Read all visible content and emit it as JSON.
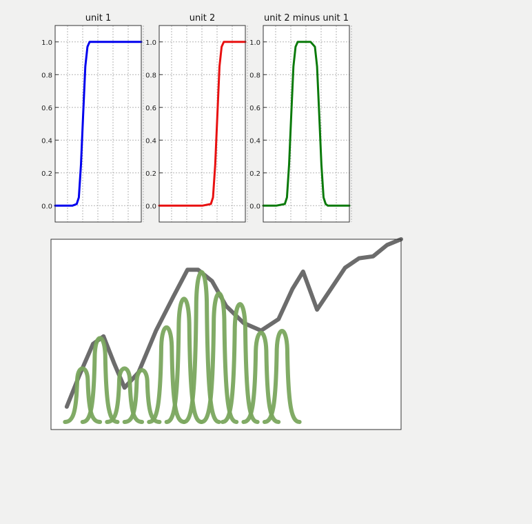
{
  "chart_data": [
    {
      "type": "line",
      "title": "unit 1",
      "xlabel": "",
      "ylabel": "",
      "xlim": [
        -1,
        1
      ],
      "ylim": [
        -0.1,
        1.1
      ],
      "yticks": [
        "0.0",
        "0.2",
        "0.4",
        "0.6",
        "0.8",
        "1.0"
      ],
      "grid": true,
      "series": [
        {
          "color": "#0000ee",
          "x": [
            -1.0,
            -0.8,
            -0.6,
            -0.5,
            -0.45,
            -0.4,
            -0.35,
            -0.3,
            -0.25,
            -0.2,
            -0.1,
            0.0,
            0.5,
            1.0
          ],
          "y": [
            0.0,
            0.0,
            0.0,
            0.01,
            0.05,
            0.25,
            0.55,
            0.85,
            0.97,
            1.0,
            1.0,
            1.0,
            1.0,
            1.0
          ]
        }
      ]
    },
    {
      "type": "line",
      "title": "unit 2",
      "xlabel": "",
      "ylabel": "",
      "xlim": [
        -1,
        1
      ],
      "ylim": [
        -0.1,
        1.1
      ],
      "yticks": [
        "0.0",
        "0.2",
        "0.4",
        "0.6",
        "0.8",
        "1.0"
      ],
      "grid": true,
      "series": [
        {
          "color": "#e81010",
          "x": [
            -1.0,
            -0.5,
            0.0,
            0.2,
            0.25,
            0.3,
            0.35,
            0.4,
            0.45,
            0.5,
            0.6,
            0.8,
            1.0
          ],
          "y": [
            0.0,
            0.0,
            0.0,
            0.01,
            0.05,
            0.25,
            0.55,
            0.85,
            0.97,
            1.0,
            1.0,
            1.0,
            1.0
          ]
        }
      ]
    },
    {
      "type": "line",
      "title": "unit 2 minus unit 1",
      "xlabel": "",
      "ylabel": "",
      "xlim": [
        -1,
        1
      ],
      "ylim": [
        -0.1,
        1.1
      ],
      "yticks": [
        "0.0",
        "0.2",
        "0.4",
        "0.6",
        "0.8",
        "1.0"
      ],
      "grid": true,
      "series": [
        {
          "color": "#0a7a0a",
          "x": [
            -1.0,
            -0.7,
            -0.5,
            -0.45,
            -0.4,
            -0.35,
            -0.3,
            -0.25,
            -0.2,
            -0.1,
            0.0,
            0.1,
            0.2,
            0.25,
            0.3,
            0.35,
            0.4,
            0.45,
            0.5,
            0.7,
            1.0
          ],
          "y": [
            0.0,
            0.0,
            0.01,
            0.05,
            0.25,
            0.55,
            0.85,
            0.97,
            1.0,
            1.0,
            1.0,
            1.0,
            0.97,
            0.85,
            0.55,
            0.25,
            0.05,
            0.01,
            0.0,
            0.0,
            0.0
          ]
        }
      ]
    },
    {
      "type": "line",
      "title": "",
      "xlabel": "",
      "ylabel": "",
      "xlim": [
        0,
        10
      ],
      "ylim": [
        0,
        1
      ],
      "grid": false,
      "series": [
        {
          "color": "#5c5c5c",
          "x": [
            0.45,
            0.8,
            1.2,
            1.5,
            1.8,
            2.1,
            2.5,
            3.0,
            3.5,
            3.9,
            4.2,
            4.6,
            5.0,
            5.5,
            6.0,
            6.5,
            6.9,
            7.2,
            7.6,
            8.0,
            8.4,
            8.8,
            9.2,
            9.6,
            10.0
          ],
          "y": [
            0.12,
            0.28,
            0.45,
            0.49,
            0.35,
            0.22,
            0.3,
            0.52,
            0.7,
            0.84,
            0.84,
            0.78,
            0.65,
            0.56,
            0.52,
            0.58,
            0.74,
            0.83,
            0.63,
            0.74,
            0.85,
            0.9,
            0.91,
            0.97,
            1.0
          ]
        }
      ],
      "bumps": {
        "color": "#7aa75e",
        "baseline": 0.04,
        "width": 0.5,
        "centers": [
          0.9,
          1.4,
          2.1,
          2.6,
          3.3,
          3.8,
          4.3,
          4.8,
          5.4,
          6.0,
          6.6
        ],
        "heights": [
          0.3,
          0.47,
          0.3,
          0.29,
          0.53,
          0.69,
          0.84,
          0.72,
          0.66,
          0.5,
          0.51
        ]
      }
    }
  ]
}
